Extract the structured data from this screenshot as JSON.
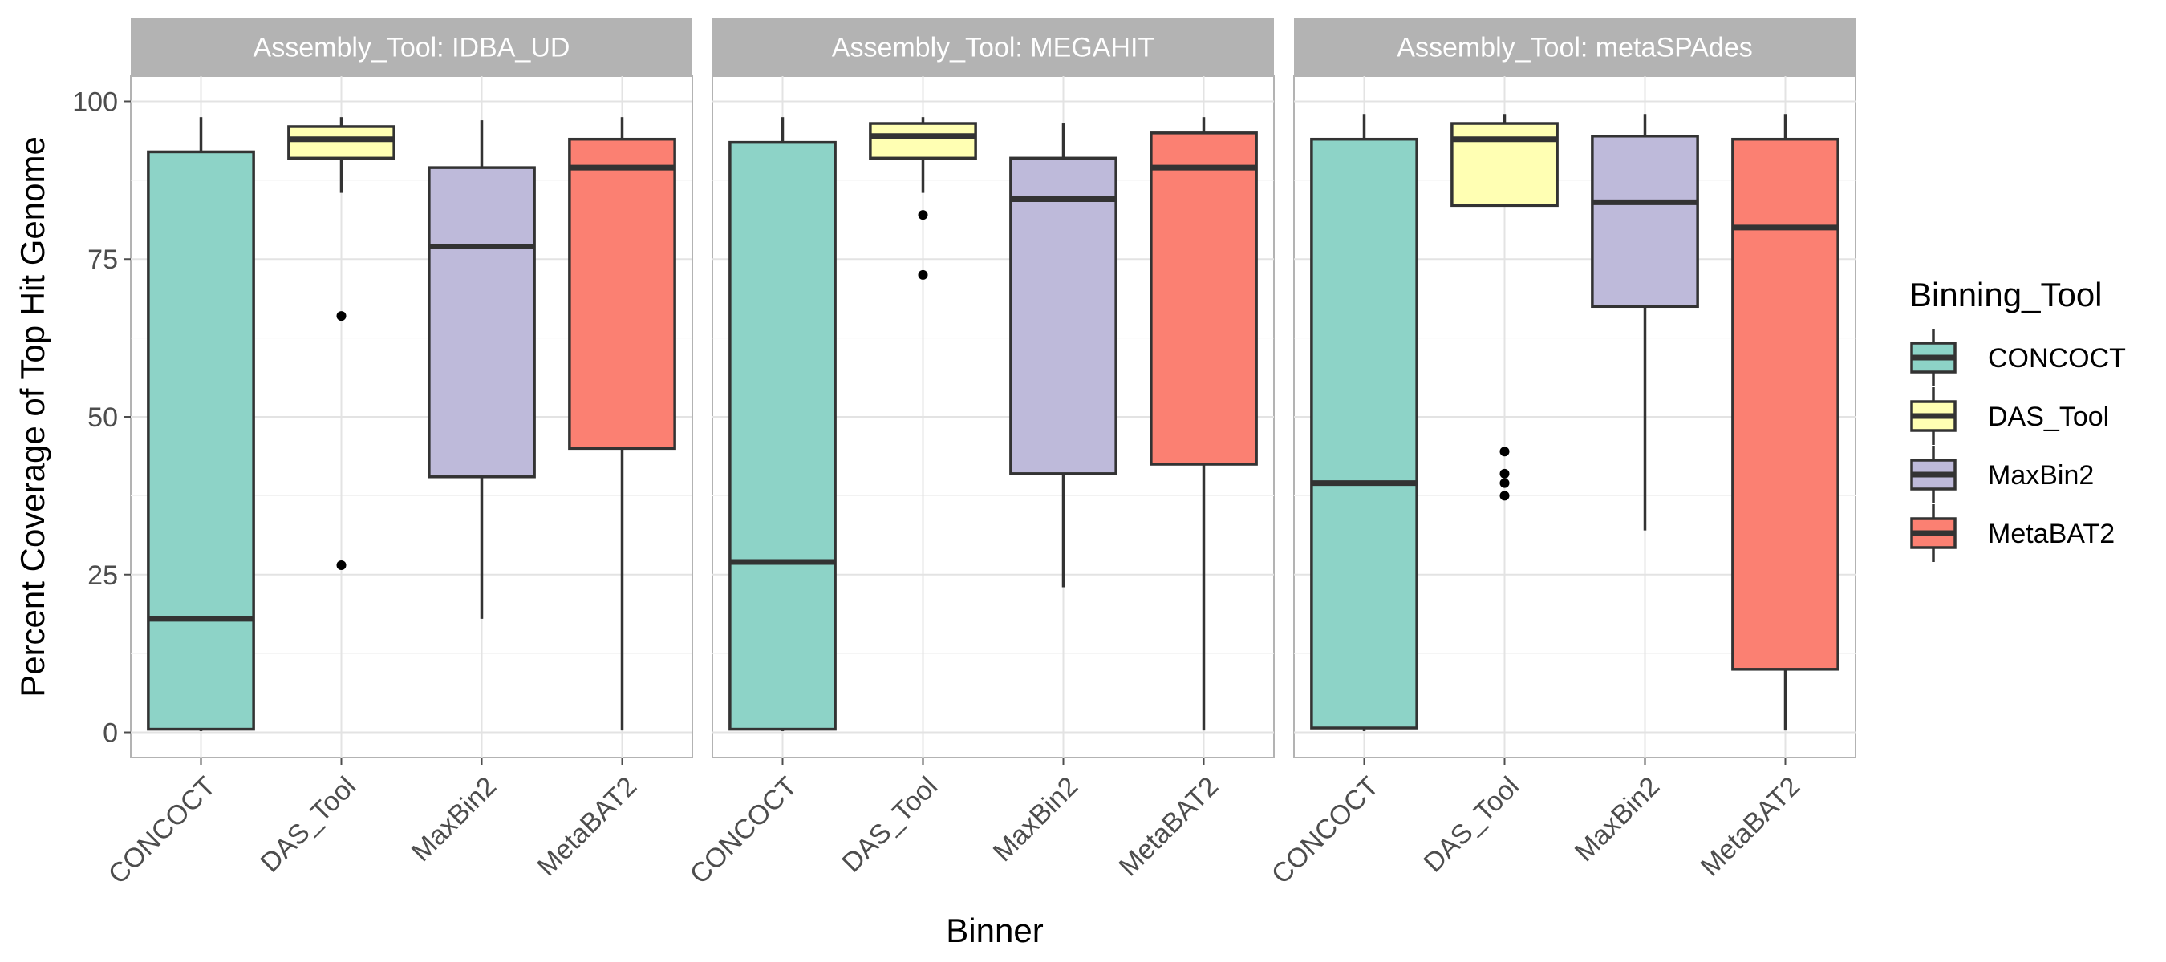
{
  "chart_data": {
    "type": "boxplot",
    "facet_variable": "Assembly_Tool",
    "xlabel": "Binner",
    "ylabel": "Percent Coverage of Top Hit Genome",
    "ylim": [
      -4,
      104
    ],
    "yticks": [
      0,
      25,
      50,
      75,
      100
    ],
    "grid": true,
    "legend": {
      "title": "Binning_Tool",
      "placement": "right",
      "entries": [
        "CONCOCT",
        "DAS_Tool",
        "MaxBin2",
        "MetaBAT2"
      ]
    },
    "categories": [
      "CONCOCT",
      "DAS_Tool",
      "MaxBin2",
      "MetaBAT2"
    ],
    "colors": {
      "CONCOCT": "#8DD3C7",
      "DAS_Tool": "#FFFFB3",
      "MaxBin2": "#BEBADA",
      "MetaBAT2": "#FB8072"
    },
    "facets": [
      {
        "label": "Assembly_Tool: IDBA_UD",
        "boxes": [
          {
            "category": "CONCOCT",
            "lower_whisker": 0.2,
            "q1": 0.5,
            "median": 18,
            "q3": 92,
            "upper_whisker": 97.5,
            "outliers": []
          },
          {
            "category": "DAS_Tool",
            "lower_whisker": 85.5,
            "q1": 91,
            "median": 94,
            "q3": 96,
            "upper_whisker": 97.5,
            "outliers": [
              66,
              26.5
            ]
          },
          {
            "category": "MaxBin2",
            "lower_whisker": 18,
            "q1": 40.5,
            "median": 77,
            "q3": 89.5,
            "upper_whisker": 97,
            "outliers": []
          },
          {
            "category": "MetaBAT2",
            "lower_whisker": 0.3,
            "q1": 45,
            "median": 89.5,
            "q3": 94,
            "upper_whisker": 97.5,
            "outliers": []
          }
        ]
      },
      {
        "label": "Assembly_Tool: MEGAHIT",
        "boxes": [
          {
            "category": "CONCOCT",
            "lower_whisker": 0.2,
            "q1": 0.5,
            "median": 27,
            "q3": 93.5,
            "upper_whisker": 97.5,
            "outliers": []
          },
          {
            "category": "DAS_Tool",
            "lower_whisker": 85.5,
            "q1": 91,
            "median": 94.5,
            "q3": 96.5,
            "upper_whisker": 97.5,
            "outliers": [
              82,
              72.5
            ]
          },
          {
            "category": "MaxBin2",
            "lower_whisker": 23,
            "q1": 41,
            "median": 84.5,
            "q3": 91,
            "upper_whisker": 96.5,
            "outliers": []
          },
          {
            "category": "MetaBAT2",
            "lower_whisker": 0.3,
            "q1": 42.5,
            "median": 89.5,
            "q3": 95,
            "upper_whisker": 97.5,
            "outliers": []
          }
        ]
      },
      {
        "label": "Assembly_Tool: metaSPAdes",
        "boxes": [
          {
            "category": "CONCOCT",
            "lower_whisker": 0.2,
            "q1": 0.7,
            "median": 39.5,
            "q3": 94,
            "upper_whisker": 98,
            "outliers": []
          },
          {
            "category": "DAS_Tool",
            "lower_whisker": 83.5,
            "q1": 83.5,
            "median": 94,
            "q3": 96.5,
            "upper_whisker": 98,
            "outliers": [
              44.5,
              41,
              39.5,
              37.5
            ]
          },
          {
            "category": "MaxBin2",
            "lower_whisker": 32,
            "q1": 67.5,
            "median": 84,
            "q3": 94.5,
            "upper_whisker": 98,
            "outliers": []
          },
          {
            "category": "MetaBAT2",
            "lower_whisker": 0.3,
            "q1": 10,
            "median": 80,
            "q3": 94,
            "upper_whisker": 98,
            "outliers": []
          }
        ]
      }
    ]
  }
}
